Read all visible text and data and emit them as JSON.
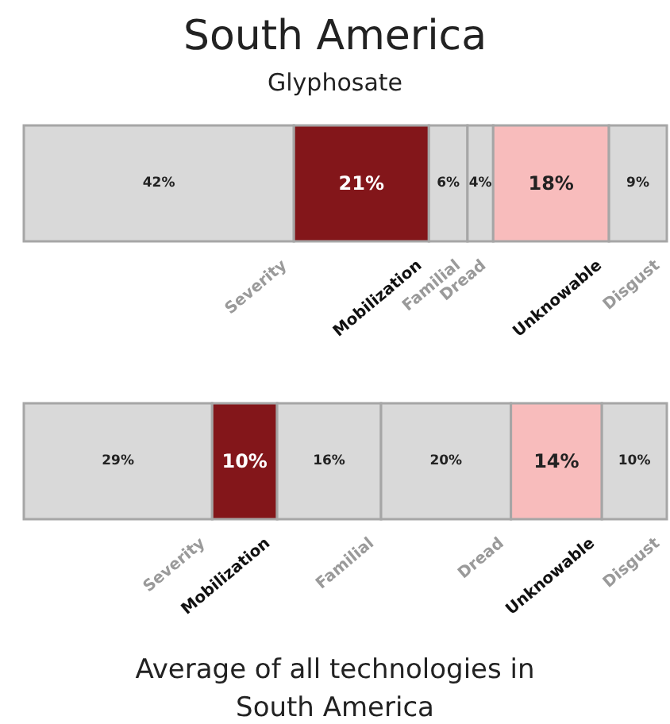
{
  "chart_data": [
    {
      "type": "bar",
      "title": "South America",
      "subtitle": "Glyphosate",
      "orientation": "horizontal",
      "stacked": true,
      "categories": [
        null
      ],
      "series": [
        {
          "name": "Severity",
          "color": "#d9d9d9",
          "values": [
            42
          ],
          "value_labels": [
            "42%"
          ]
        },
        {
          "name": "Mobilization",
          "color": "#83161a",
          "values": [
            21
          ],
          "value_labels": [
            "21%"
          ]
        },
        {
          "name": "Familial",
          "color": "#d9d9d9",
          "values": [
            6
          ],
          "value_labels": [
            "6%"
          ]
        },
        {
          "name": "Dread",
          "color": "#d9d9d9",
          "values": [
            4
          ],
          "value_labels": [
            "4%"
          ]
        },
        {
          "name": "Unknowable",
          "color": "#f8bcbc",
          "values": [
            18
          ],
          "value_labels": [
            "18%"
          ]
        },
        {
          "name": "Disgust",
          "color": "#d9d9d9",
          "values": [
            9
          ],
          "value_labels": [
            "9%"
          ]
        }
      ]
    },
    {
      "type": "bar",
      "title": "Average of all technologies in South America",
      "orientation": "horizontal",
      "stacked": true,
      "categories": [
        null
      ],
      "series": [
        {
          "name": "Severity",
          "color": "#d9d9d9",
          "values": [
            29
          ],
          "value_labels": [
            "29%"
          ]
        },
        {
          "name": "Mobilization",
          "color": "#83161a",
          "values": [
            10
          ],
          "value_labels": [
            "10%"
          ]
        },
        {
          "name": "Familial",
          "color": "#d9d9d9",
          "values": [
            16
          ],
          "value_labels": [
            "16%"
          ]
        },
        {
          "name": "Dread",
          "color": "#d9d9d9",
          "values": [
            20
          ],
          "value_labels": [
            "20%"
          ]
        },
        {
          "name": "Unknowable",
          "color": "#f8bcbc",
          "values": [
            14
          ],
          "value_labels": [
            "14%"
          ]
        },
        {
          "name": "Disgust",
          "color": "#d9d9d9",
          "values": [
            10
          ],
          "value_labels": [
            "10%"
          ]
        }
      ]
    }
  ]
}
